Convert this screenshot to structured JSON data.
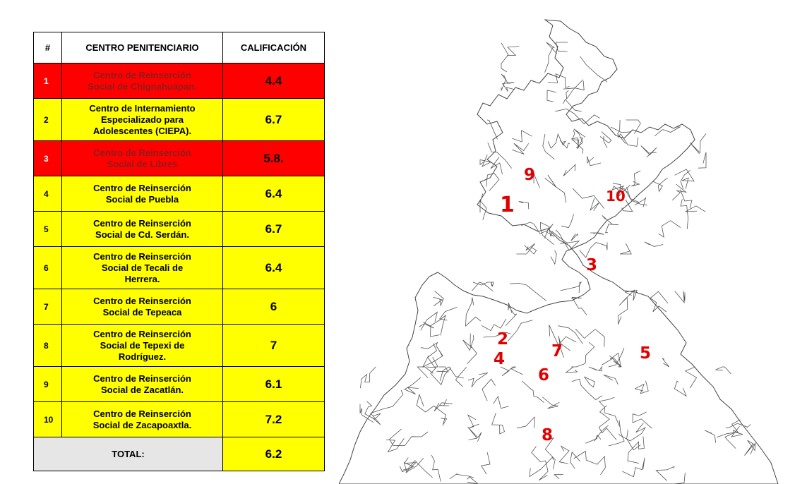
{
  "table": {
    "headers": {
      "num": "#",
      "name": "CENTRO PENITENCIARIO",
      "grade": "CALIFICACIÓN"
    },
    "rows": [
      {
        "num": "1",
        "name_lines": [
          "Centro de Reinserción",
          "Social de Chignahuapan."
        ],
        "grade": "4.4",
        "status": "red"
      },
      {
        "num": "2",
        "name_lines": [
          "Centro de Internamiento",
          "Especializado para",
          "Adolescentes (CIEPA)."
        ],
        "grade": "6.7",
        "status": "yellow"
      },
      {
        "num": "3",
        "name_lines": [
          "Centro de Reinserción",
          "Social de Libres"
        ],
        "grade": "5.8.",
        "status": "red"
      },
      {
        "num": "4",
        "name_lines": [
          "Centro de Reinserción",
          "Social de Puebla"
        ],
        "grade": "6.4",
        "status": "yellow"
      },
      {
        "num": "5",
        "name_lines": [
          "Centro de Reinserción",
          "Social de Cd. Serdán."
        ],
        "grade": "6.7",
        "status": "yellow"
      },
      {
        "num": "6",
        "name_lines": [
          "Centro de Reinserción",
          "Social de Tecali de",
          "Herrera."
        ],
        "grade": "6.4",
        "status": "yellow"
      },
      {
        "num": "7",
        "name_lines": [
          "Centro de Reinserción",
          "Social de Tepeaca"
        ],
        "grade": "6",
        "status": "yellow"
      },
      {
        "num": "8",
        "name_lines": [
          "Centro de Reinserción",
          "Social de Tepexi de",
          "Rodríguez."
        ],
        "grade": "7",
        "status": "yellow"
      },
      {
        "num": "9",
        "name_lines": [
          "Centro de Reinserción",
          "Social de Zacatlán."
        ],
        "grade": "6.1",
        "status": "yellow"
      },
      {
        "num": "10",
        "name_lines": [
          "Centro de Reinserción",
          "Social de Zacapoaxtla."
        ],
        "grade": "7.2",
        "status": "yellow"
      }
    ],
    "total": {
      "label": "TOTAL:",
      "grade": "6.2"
    }
  },
  "colors": {
    "red": "#ff0000",
    "yellow": "#ffff00",
    "total_label_bg": "#e6e6e6",
    "map_label": "#e00000"
  },
  "map": {
    "labels": [
      "1",
      "2",
      "3",
      "4",
      "5",
      "6",
      "7",
      "8",
      "9",
      "10"
    ]
  }
}
